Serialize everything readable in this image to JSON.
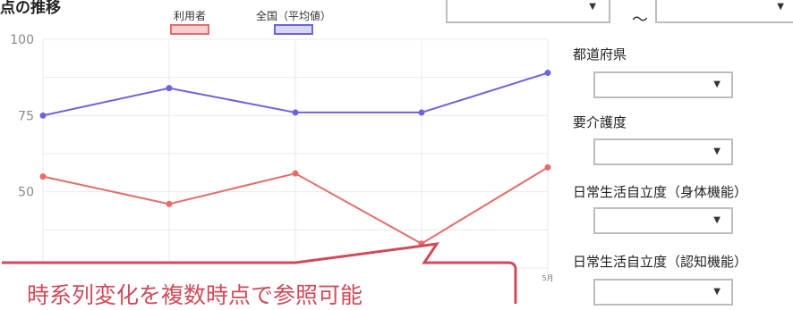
{
  "section": {
    "title_fragment": "点の推移"
  },
  "period": {
    "tilde": "～"
  },
  "filters": [
    {
      "label": "都道府県",
      "value": ""
    },
    {
      "label": "要介護度",
      "value": ""
    },
    {
      "label": "日常生活自立度（身体機能）",
      "value": ""
    },
    {
      "label": "日常生活自立度（認知機能）",
      "value": ""
    }
  ],
  "callout": {
    "text": "時系列変化を複数時点で参照可能"
  },
  "colors": {
    "user": "#e86a6a",
    "national": "#6b63e0",
    "callout": "#d04a5a",
    "border": "#bdbdbd"
  },
  "chart_data": {
    "type": "line",
    "x": [
      "",
      "",
      "",
      "",
      "5月"
    ],
    "ylim": [
      25,
      100
    ],
    "yticks": [
      100,
      75,
      50
    ],
    "grid": true,
    "legend_position": "top",
    "series": [
      {
        "name": "利用者",
        "values": [
          55,
          46,
          56,
          33,
          58
        ]
      },
      {
        "name": "全国（平均値）",
        "values": [
          75,
          84,
          76,
          76,
          89
        ]
      }
    ]
  }
}
